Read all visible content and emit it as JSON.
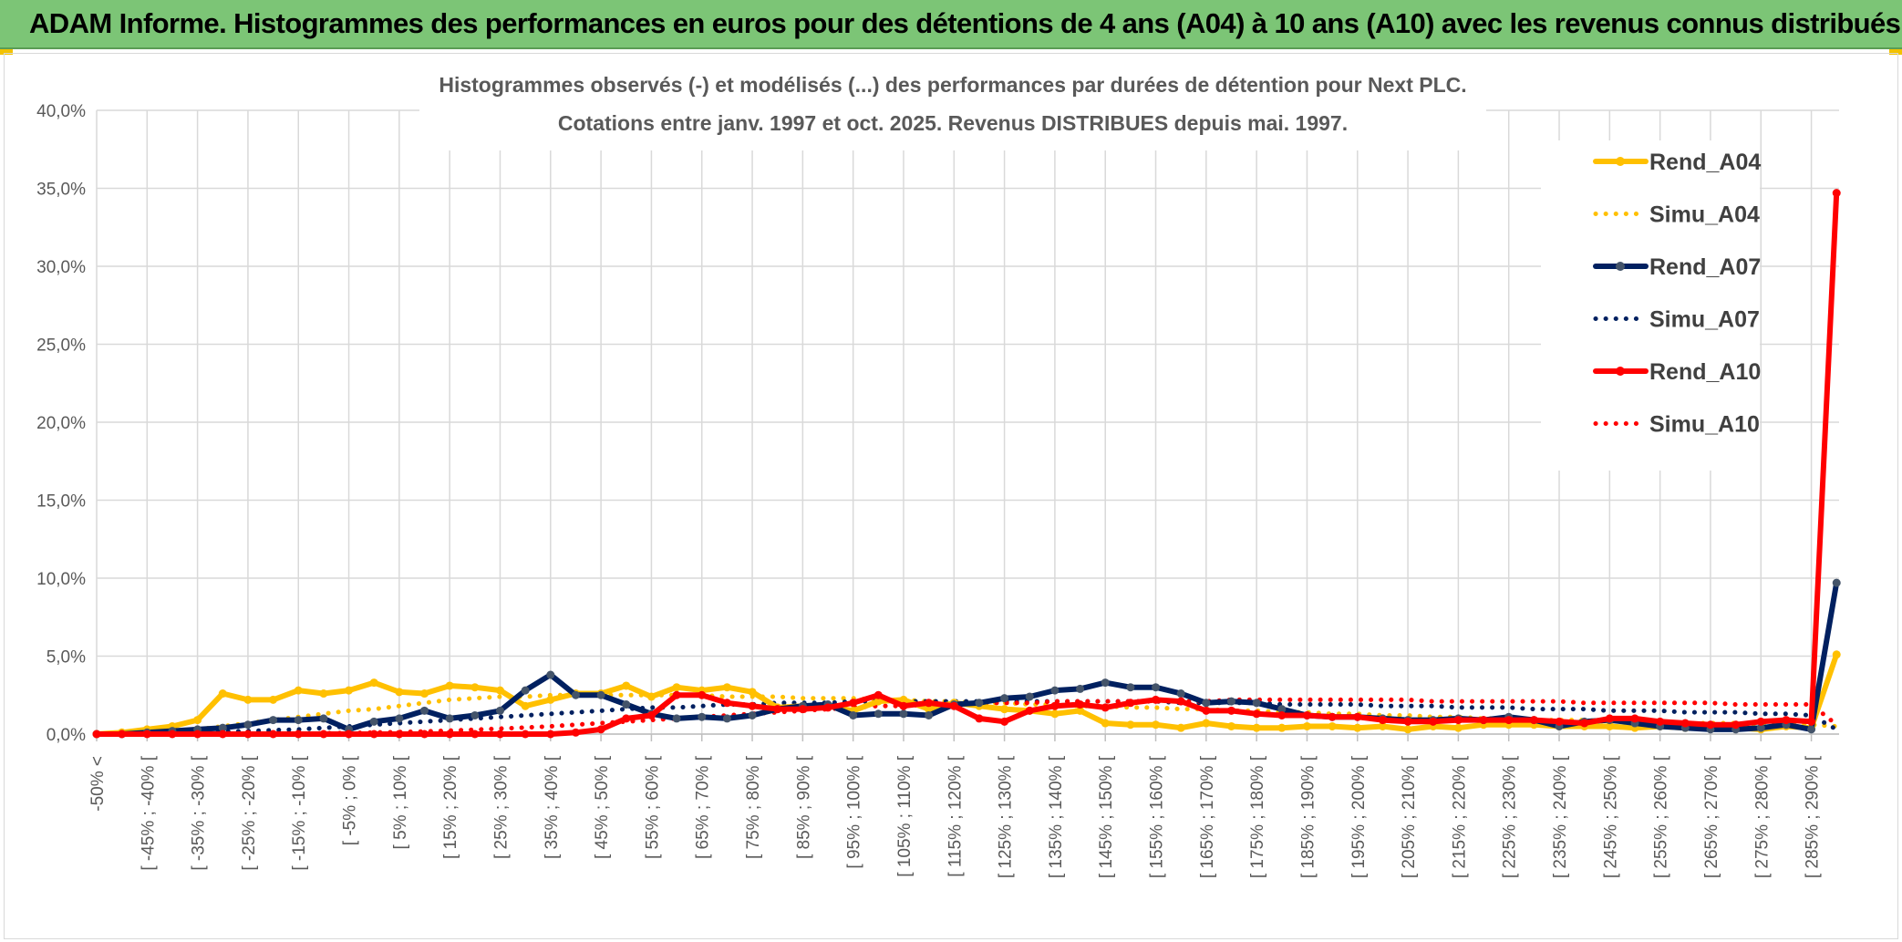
{
  "header": {
    "title": "ADAM Informe. Histogrammes des performances en euros pour des détentions de 4 ans (A04) à 10 ans (A10) avec les revenus connus distribués"
  },
  "colors": {
    "header_bg": "#7cc576",
    "A04": "#ffc000",
    "A07": "#002060",
    "A10": "#ff0000",
    "marker_A07": "#44546a",
    "grid": "#d9d9d9",
    "axis_text": "#595959"
  },
  "chart_data": {
    "type": "line",
    "title": "Histogrammes observés (-) et modélisés (...) des performances par durées de détention pour Next PLC.",
    "subtitle": "Cotations entre janv. 1997 et oct. 2025. Revenus DISTRIBUES depuis mai. 1997.",
    "xlabel": "",
    "ylabel": "",
    "ylim": [
      0,
      40
    ],
    "yticks": [
      "0,0%",
      "5,0%",
      "10,0%",
      "15,0%",
      "20,0%",
      "25,0%",
      "30,0%",
      "35,0%",
      "40,0%"
    ],
    "grid": true,
    "legend_position": "right",
    "x_tick_labels": [
      "-50% <",
      "[ -45% ; -40% [",
      "[ -35% ; -30% [",
      "[ -25% ; -20% [",
      "[ -15% ; -10% [",
      "[ -5% ; 0% [",
      "[ 5% ; 10% [",
      "[ 15% ; 20% [",
      "[ 25% ; 30% [",
      "[ 35% ; 40% [",
      "[ 45% ; 50% [",
      "[ 55% ; 60% [",
      "[ 65% ; 70% [",
      "[ 75% ; 80% [",
      "[ 85% ; 90% [",
      "[ 95% ; 100% [",
      "[ 105% ; 110% [",
      "[ 115% ; 120% [",
      "[ 125% ; 130% [",
      "[ 135% ; 140% [",
      "[ 145% ; 150% [",
      "[ 155% ; 160% [",
      "[ 165% ; 170% [",
      "[ 175% ; 180% [",
      "[ 185% ; 190% [",
      "[ 195% ; 200% [",
      "[ 205% ; 210% [",
      "[ 215% ; 220% [",
      "[ 225% ; 230% [",
      "[ 235% ; 240% [",
      "[ 245% ; 250% [",
      "[ 255% ; 260% [",
      "[ 265% ; 270% [",
      "[ 275% ; 280% [",
      "[ 285% ; 290% ["
    ],
    "n_points": 70,
    "series": [
      {
        "name": "Rend_A04",
        "style": "solid",
        "values": [
          0,
          0.1,
          0.3,
          0.5,
          0.9,
          2.6,
          2.2,
          2.2,
          2.8,
          2.6,
          2.8,
          3.3,
          2.7,
          2.6,
          3.1,
          3.0,
          2.8,
          1.8,
          2.2,
          2.6,
          2.6,
          3.1,
          2.4,
          3.0,
          2.8,
          3.0,
          2.7,
          1.7,
          1.8,
          1.8,
          1.5,
          2.1,
          2.2,
          1.6,
          2.0,
          1.8,
          1.6,
          1.5,
          1.3,
          1.5,
          0.7,
          0.6,
          0.6,
          0.4,
          0.7,
          0.5,
          0.4,
          0.4,
          0.5,
          0.5,
          0.4,
          0.5,
          0.3,
          0.5,
          0.4,
          0.6,
          0.6,
          0.6,
          0.5,
          0.5,
          0.5,
          0.4,
          0.5,
          0.4,
          0.4,
          0.4,
          0.3,
          0.5,
          0.4,
          5.1
        ]
      },
      {
        "name": "Simu_A04",
        "style": "dotted",
        "values": [
          0,
          0.05,
          0.1,
          0.2,
          0.3,
          0.5,
          0.7,
          0.9,
          1.1,
          1.3,
          1.5,
          1.6,
          1.8,
          2.0,
          2.2,
          2.3,
          2.4,
          2.4,
          2.5,
          2.5,
          2.5,
          2.5,
          2.5,
          2.5,
          2.5,
          2.4,
          2.4,
          2.4,
          2.3,
          2.3,
          2.3,
          2.2,
          2.2,
          2.1,
          2.1,
          2.0,
          2.0,
          1.9,
          1.9,
          1.8,
          1.8,
          1.7,
          1.7,
          1.6,
          1.6,
          1.5,
          1.5,
          1.4,
          1.4,
          1.3,
          1.3,
          1.2,
          1.2,
          1.1,
          1.1,
          1.0,
          1.0,
          0.9,
          0.9,
          0.9,
          0.8,
          0.8,
          0.8,
          0.7,
          0.7,
          0.7,
          0.6,
          0.6,
          0.6,
          0.5
        ]
      },
      {
        "name": "Rend_A07",
        "style": "solid",
        "values": [
          0,
          0,
          0.1,
          0.2,
          0.3,
          0.4,
          0.6,
          0.9,
          0.9,
          1.0,
          0.3,
          0.8,
          1.0,
          1.5,
          1.0,
          1.2,
          1.5,
          2.8,
          3.8,
          2.5,
          2.5,
          1.9,
          1.3,
          1.0,
          1.1,
          1.0,
          1.2,
          1.6,
          1.8,
          1.9,
          1.2,
          1.3,
          1.3,
          1.2,
          1.9,
          2.0,
          2.3,
          2.4,
          2.8,
          2.9,
          3.3,
          3.0,
          3.0,
          2.6,
          2.0,
          2.1,
          2.0,
          1.6,
          1.2,
          1.1,
          1.1,
          1.0,
          0.9,
          0.9,
          1.0,
          0.9,
          1.1,
          0.9,
          0.5,
          0.8,
          0.9,
          0.7,
          0.5,
          0.4,
          0.3,
          0.3,
          0.4,
          0.6,
          0.3,
          9.7
        ]
      },
      {
        "name": "Simu_A07",
        "style": "dotted",
        "values": [
          0,
          0,
          0.02,
          0.05,
          0.1,
          0.15,
          0.2,
          0.25,
          0.3,
          0.4,
          0.5,
          0.6,
          0.7,
          0.8,
          0.9,
          1.0,
          1.1,
          1.2,
          1.3,
          1.4,
          1.5,
          1.6,
          1.7,
          1.7,
          1.8,
          1.9,
          1.9,
          2.0,
          2.0,
          2.0,
          2.1,
          2.1,
          2.1,
          2.1,
          2.1,
          2.1,
          2.1,
          2.1,
          2.1,
          2.1,
          2.1,
          2.1,
          2.1,
          2.0,
          2.0,
          2.0,
          2.0,
          1.9,
          1.9,
          1.9,
          1.9,
          1.8,
          1.8,
          1.8,
          1.7,
          1.7,
          1.7,
          1.6,
          1.6,
          1.6,
          1.5,
          1.5,
          1.5,
          1.4,
          1.4,
          1.4,
          1.3,
          1.3,
          1.2,
          0.3
        ]
      },
      {
        "name": "Rend_A10",
        "style": "solid",
        "values": [
          0,
          0,
          0,
          0,
          0,
          0,
          0,
          0,
          0,
          0,
          0,
          0,
          0,
          0,
          0,
          0,
          0,
          0,
          0,
          0.1,
          0.3,
          1.0,
          1.2,
          2.5,
          2.5,
          2.0,
          1.8,
          1.6,
          1.6,
          1.7,
          2.0,
          2.5,
          1.8,
          2.0,
          1.8,
          1.0,
          0.8,
          1.5,
          1.8,
          1.9,
          1.7,
          2.0,
          2.2,
          2.1,
          1.5,
          1.5,
          1.3,
          1.2,
          1.2,
          1.1,
          1.1,
          0.9,
          0.8,
          0.8,
          0.9,
          0.9,
          0.9,
          0.9,
          0.8,
          0.7,
          1.0,
          1.0,
          0.8,
          0.7,
          0.6,
          0.6,
          0.8,
          0.9,
          0.8,
          34.7
        ]
      },
      {
        "name": "Simu_A10",
        "style": "dotted",
        "values": [
          0,
          0,
          0,
          0,
          0,
          0,
          0.01,
          0.02,
          0.03,
          0.05,
          0.07,
          0.1,
          0.13,
          0.17,
          0.22,
          0.28,
          0.35,
          0.42,
          0.5,
          0.6,
          0.7,
          0.8,
          0.9,
          1.0,
          1.1,
          1.2,
          1.3,
          1.4,
          1.5,
          1.6,
          1.7,
          1.8,
          1.8,
          1.9,
          1.9,
          2.0,
          2.0,
          2.0,
          2.1,
          2.1,
          2.1,
          2.1,
          2.1,
          2.1,
          2.1,
          2.2,
          2.2,
          2.2,
          2.2,
          2.2,
          2.2,
          2.2,
          2.2,
          2.1,
          2.1,
          2.1,
          2.1,
          2.1,
          2.1,
          2.0,
          2.0,
          2.0,
          2.0,
          2.0,
          2.0,
          1.9,
          1.9,
          1.9,
          1.9,
          0.6
        ]
      }
    ]
  }
}
